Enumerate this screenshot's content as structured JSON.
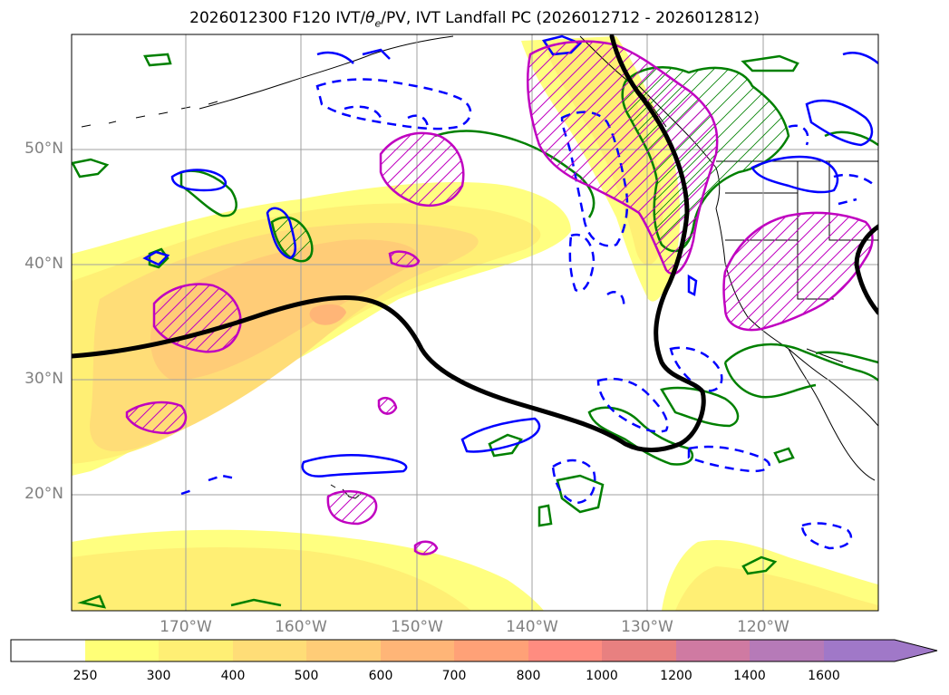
{
  "title": {
    "part1": "2026012300 F120 IVT/",
    "theta": "θ",
    "theta_sub": "e",
    "part2": "/PV, IVT Landfall PC (2026012712 - 2026012812)"
  },
  "latitude_labels": [
    "50°N",
    "40°N",
    "30°N",
    "20°N"
  ],
  "longitude_labels": [
    "170°W",
    "160°W",
    "150°W",
    "140°W",
    "130°W",
    "120°W"
  ],
  "colorbar": {
    "ticks": [
      "250",
      "300",
      "400",
      "500",
      "600",
      "700",
      "800",
      "1000",
      "1200",
      "1400",
      "1600"
    ],
    "colors": [
      "#ffffff",
      "#ffff77",
      "#ffef74",
      "#ffdd77",
      "#ffcc77",
      "#ffb577",
      "#ffa177",
      "#ff8c80",
      "#e88080",
      "#cf7aa2",
      "#b67ab8",
      "#a078c8"
    ]
  },
  "legend_colors": {
    "theta_e_contour": "#0000ff",
    "pv_contour": "#008000",
    "landfall_pc": "#c000c0",
    "jet_line": "#000000",
    "coastline": "#000000",
    "grid": "#a0a0a0"
  }
}
